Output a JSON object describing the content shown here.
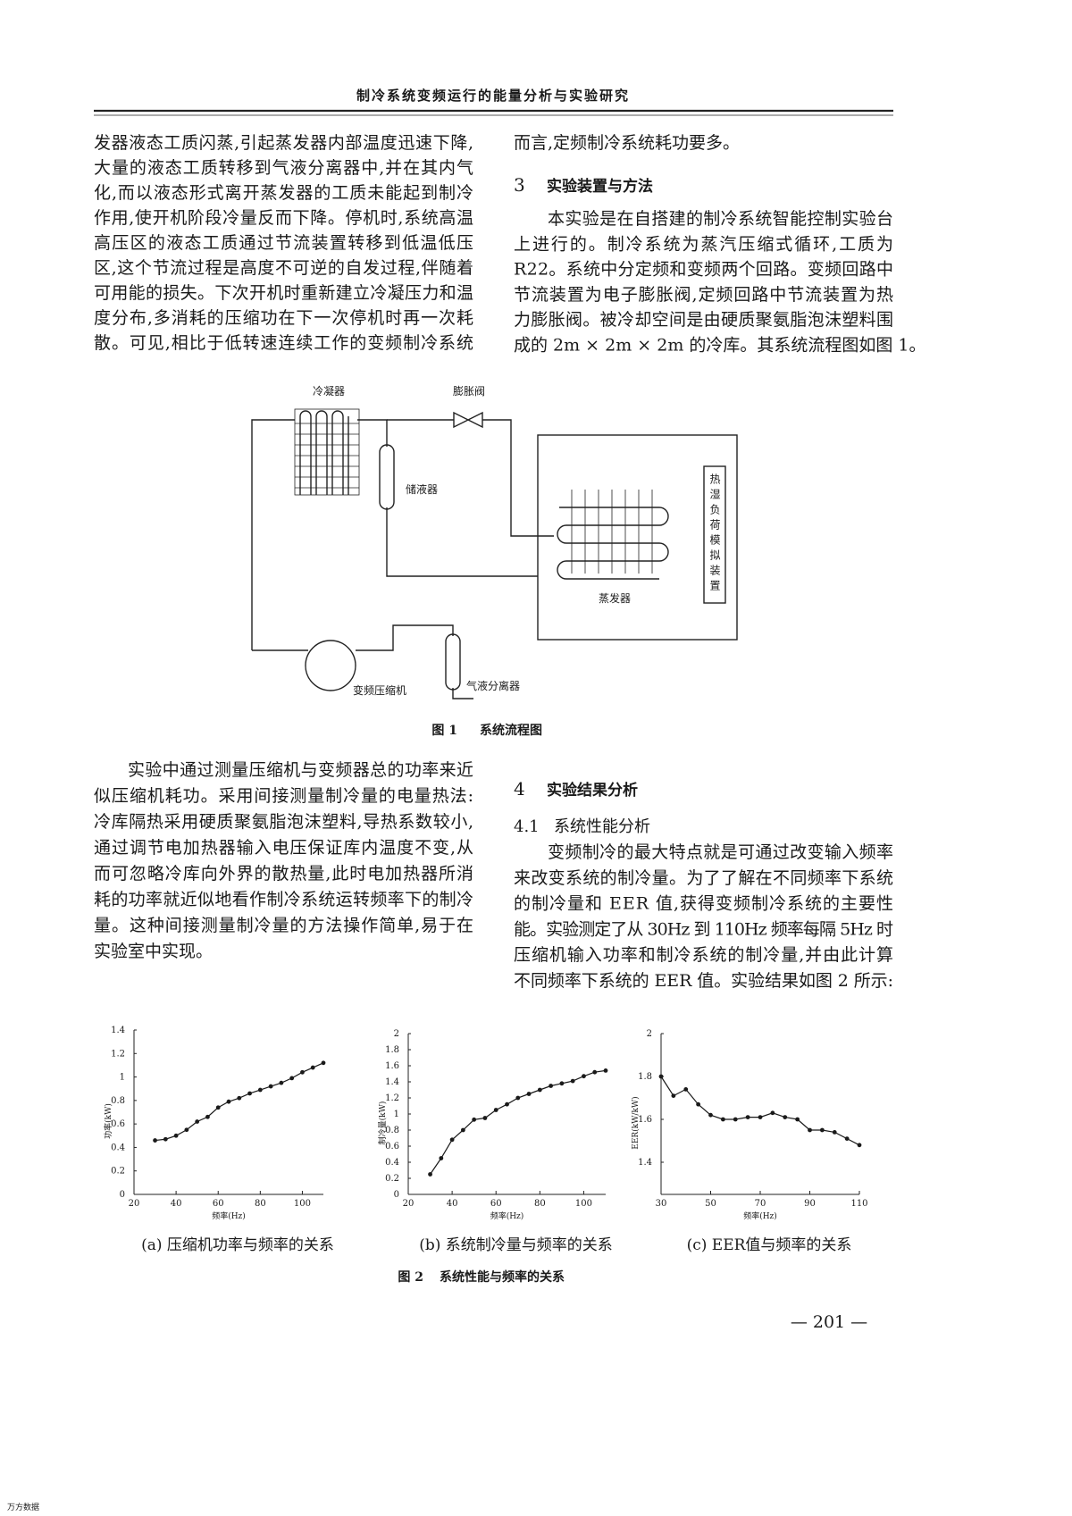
{
  "header": {
    "title": "制冷系统变频运行的能量分析与实验研究"
  },
  "body": {
    "top_left": [
      "发器液态工质闪蒸,引起蒸发器内部温度迅速下降,",
      "大量的液态工质转移到气液分离器中,并在其内气",
      "化,而以液态形式离开蒸发器的工质未能起到制冷",
      "作用,使开机阶段冷量反而下降。停机时,系统高温",
      "高压区的液态工质通过节流装置转移到低温低压",
      "区,这个节流过程是高度不可逆的自发过程,伴随着",
      "可用能的损失。下次开机时重新建立冷凝压力和温",
      "度分布,多消耗的压缩功在下一次停机时再一次耗",
      "散。可见,相比于低转速连续工作的变频制冷系统"
    ],
    "top_right": [
      "而言,定频制冷系统耗功要多。"
    ],
    "section3": {
      "number": "3",
      "title": "实验装置与方法",
      "lines": [
        "本实验是在自搭建的制冷系统智能控制实验台",
        "上进行的。制冷系统为蒸汽压缩式循环,工质为",
        "R22。系统中分定频和变频两个回路。变频回路中",
        "节流装置为电子膨胀阀,定频回路中节流装置为热",
        "力膨胀阀。被冷却空间是由硬质聚氨脂泡沫塑料围",
        "成的 2m × 2m × 2m 的冷库。其系统流程图如图 1。"
      ]
    },
    "bottom_left": [
      "实验中通过测量压缩机与变频器总的功率来近",
      "似压缩机耗功。采用间接测量制冷量的电量热法:",
      "冷库隔热采用硬质聚氨脂泡沫塑料,导热系数较小,",
      "通过调节电加热器输入电压保证库内温度不变,从",
      "而可忽略冷库向外界的散热量,此时电加热器所消",
      "耗的功率就近似地看作制冷系统运转频率下的制冷",
      "量。这种间接测量制冷量的方法操作简单,易于在",
      "实验室中实现。"
    ],
    "section4": {
      "number": "4",
      "title": "实验结果分析",
      "subsection": {
        "number": "4.1",
        "title": "系统性能分析"
      },
      "lines": [
        "变频制冷的最大特点就是可通过改变输入频率",
        "来改变系统的制冷量。为了了解在不同频率下系统",
        "的制冷量和 EER 值,获得变频制冷系统的主要性",
        "能。实验测定了从 30Hz 到 110Hz 频率每隔 5Hz 时",
        "压缩机输入功率和制冷系统的制冷量,并由此计算",
        "不同频率下系统的 EER 值。实验结果如图 2 所示:"
      ]
    }
  },
  "figure1": {
    "labels": {
      "condenser": "冷凝器",
      "valve": "膨胀阀",
      "receiver": "储液器",
      "load": "热湿负荷模拟装置",
      "evaporator": "蒸发器",
      "compressor": "变频压缩机",
      "separator": "气液分离器"
    },
    "caption": {
      "number": "图 1",
      "title": "系统流程图"
    }
  },
  "chart_data": [
    {
      "type": "line",
      "caption": "(a)  压缩机功率与频率的关系",
      "xlabel": "频率(Hz)",
      "ylabel": "功率(kW)",
      "x": [
        30,
        35,
        40,
        45,
        50,
        55,
        60,
        65,
        70,
        75,
        80,
        85,
        90,
        95,
        100,
        105,
        110
      ],
      "values": [
        0.46,
        0.47,
        0.5,
        0.55,
        0.62,
        0.66,
        0.74,
        0.79,
        0.82,
        0.86,
        0.89,
        0.92,
        0.95,
        0.99,
        1.04,
        1.08,
        1.12
      ],
      "xlim": [
        20,
        110
      ],
      "ylim": [
        0,
        1.4
      ],
      "xticks": [
        20,
        40,
        60,
        80,
        100
      ],
      "yticks": [
        0,
        0.2,
        0.4,
        0.6,
        0.8,
        1,
        1.2,
        1.4
      ],
      "color": "#1a1a1a",
      "grid": false
    },
    {
      "type": "line",
      "caption": "(b)  系统制冷量与频率的关系",
      "xlabel": "频率(Hz)",
      "ylabel": "制冷量(kW)",
      "x": [
        30,
        35,
        40,
        45,
        50,
        55,
        60,
        65,
        70,
        75,
        80,
        85,
        90,
        95,
        100,
        105,
        110
      ],
      "values": [
        0.25,
        0.45,
        0.68,
        0.8,
        0.93,
        0.95,
        1.05,
        1.12,
        1.2,
        1.25,
        1.3,
        1.35,
        1.38,
        1.41,
        1.47,
        1.52,
        1.54
      ],
      "xlim": [
        20,
        110
      ],
      "ylim": [
        0,
        2
      ],
      "xticks": [
        20,
        40,
        60,
        80,
        100
      ],
      "yticks": [
        0,
        0.2,
        0.4,
        0.6,
        0.8,
        1,
        1.2,
        1.4,
        1.6,
        1.8,
        2
      ],
      "color": "#1a1a1a",
      "grid": false
    },
    {
      "type": "line",
      "caption": "(c)   EER值与频率的关系",
      "xlabel": "频率(Hz)",
      "ylabel": "EER(kW/kW)",
      "x": [
        30,
        35,
        40,
        45,
        50,
        55,
        60,
        65,
        70,
        75,
        80,
        85,
        90,
        95,
        100,
        105,
        110
      ],
      "values": [
        1.8,
        1.71,
        1.74,
        1.67,
        1.62,
        1.6,
        1.6,
        1.61,
        1.61,
        1.63,
        1.61,
        1.6,
        1.55,
        1.55,
        1.54,
        1.51,
        1.48
      ],
      "xlim": [
        30,
        110
      ],
      "ylim": [
        1.25,
        2
      ],
      "xticks": [
        30,
        50,
        70,
        90,
        110
      ],
      "yticks": [
        1.4,
        1.6,
        1.8,
        2
      ],
      "color": "#1a1a1a",
      "grid": false
    }
  ],
  "figure2": {
    "caption": {
      "number": "图 2",
      "title": "系统性能与频率的关系"
    }
  },
  "page_number": "— 201 —",
  "footer": "万方数据"
}
